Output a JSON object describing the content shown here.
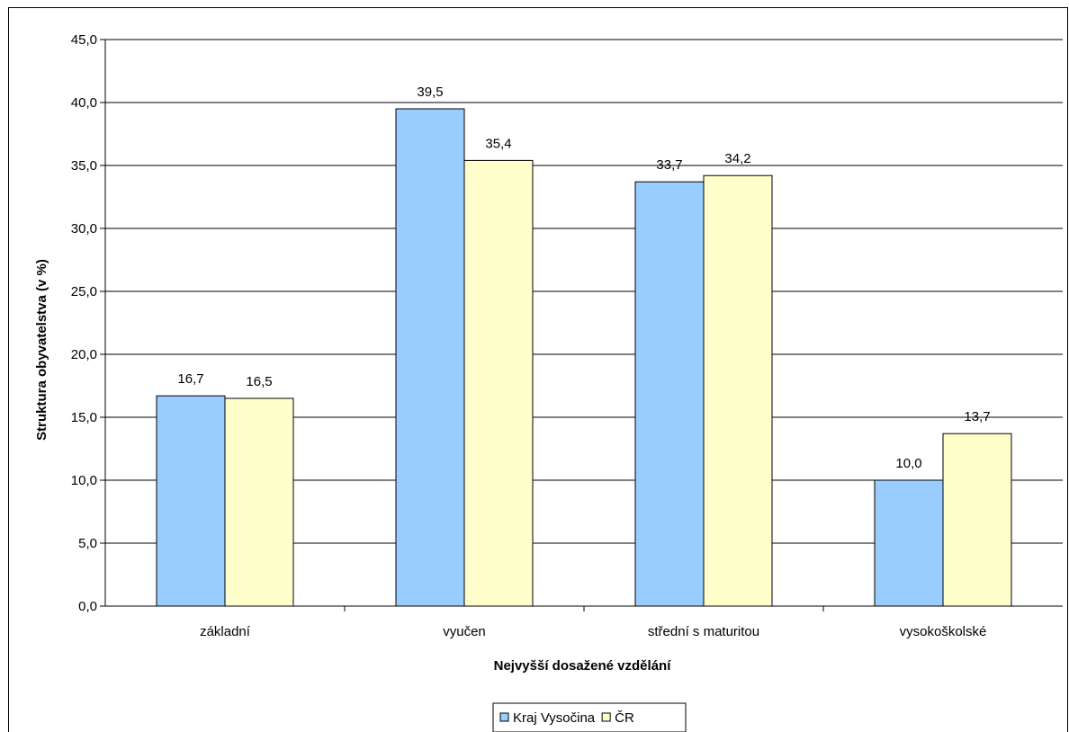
{
  "chart_data": {
    "type": "bar",
    "categories": [
      "základní",
      "vyučen",
      "střední s maturitou",
      "vysokoškolské"
    ],
    "series": [
      {
        "name": "Kraj Vysočina",
        "color": "#99ccff",
        "values": [
          16.7,
          39.5,
          33.7,
          10.0
        ],
        "labels": [
          "16,7",
          "39,5",
          "33,7",
          "10,0"
        ]
      },
      {
        "name": "ČR",
        "color": "#ffffcc",
        "values": [
          16.5,
          35.4,
          34.2,
          13.7
        ],
        "labels": [
          "16,5",
          "35,4",
          "34,2",
          "13,7"
        ]
      }
    ],
    "xlabel": "Nejvyšší dosažené vzdělání",
    "ylabel": "Struktura obyvatelstva (v %)",
    "ylim": [
      0,
      45
    ],
    "yticks": [
      0,
      5,
      10,
      15,
      20,
      25,
      30,
      35,
      40,
      45
    ],
    "ytick_labels": [
      "0,0",
      "5,0",
      "10,0",
      "15,0",
      "20,0",
      "25,0",
      "30,0",
      "35,0",
      "40,0",
      "45,0"
    ],
    "grid": true,
    "legend": "bottom-center"
  }
}
